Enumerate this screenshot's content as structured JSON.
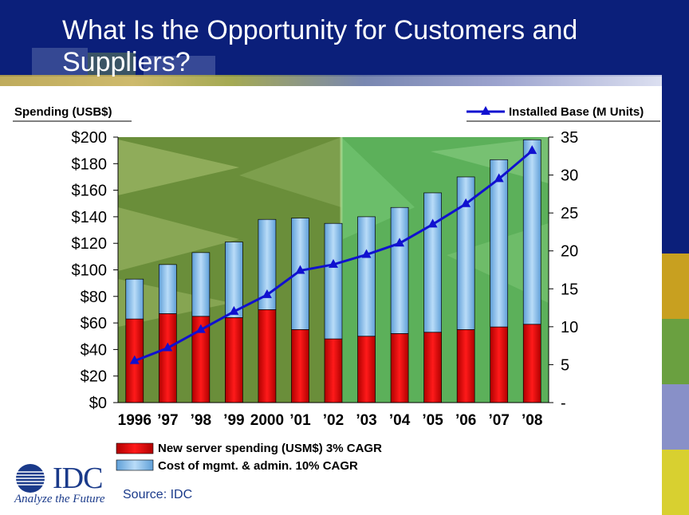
{
  "slide": {
    "title": "What Is the Opportunity for Customers and Suppliers?",
    "source": "Source: IDC",
    "logo_text": "IDC",
    "tagline": "Analyze the Future"
  },
  "chart_data": {
    "type": "bar",
    "stacked": true,
    "categories": [
      "1996",
      "’97",
      "’98",
      "’99",
      "2000",
      "’01",
      "’02",
      "’03",
      "’04",
      "’05",
      "’06",
      "’07",
      "’08"
    ],
    "series": [
      {
        "name": "New server spending (USM$) 3% CAGR",
        "color": "#e00000",
        "values": [
          63,
          67,
          65,
          64,
          70,
          55,
          48,
          50,
          52,
          53,
          55,
          57,
          59
        ]
      },
      {
        "name": "Cost of mgmt. & admin. 10% CAGR",
        "color": "#8fc4ef",
        "values": [
          30,
          37,
          48,
          57,
          68,
          84,
          87,
          90,
          95,
          105,
          115,
          126,
          139
        ]
      }
    ],
    "line_series": {
      "name": "Installed Base (M Units)",
      "color": "#1010d0",
      "values": [
        5.5,
        7.2,
        9.6,
        12,
        14.2,
        17.4,
        18.2,
        19.5,
        21,
        23.5,
        26.2,
        29.5,
        33.2
      ]
    },
    "y_left": {
      "label": "Spending (USB$)",
      "min": 0,
      "max": 200,
      "ticks": [
        0,
        20,
        40,
        60,
        80,
        100,
        120,
        140,
        160,
        180,
        200
      ],
      "tick_labels": [
        "$0",
        "$20",
        "$40",
        "$60",
        "$80",
        "$100",
        "$120",
        "$140",
        "$160",
        "$180",
        "$200"
      ]
    },
    "y_right": {
      "min": 0,
      "max": 35,
      "ticks": [
        0,
        5,
        10,
        15,
        20,
        25,
        30,
        35
      ],
      "tick_labels": [
        "-",
        "5",
        "10",
        "15",
        "20",
        "25",
        "30",
        "35"
      ]
    },
    "legend_position": "bottom-left; line legend top-right"
  }
}
